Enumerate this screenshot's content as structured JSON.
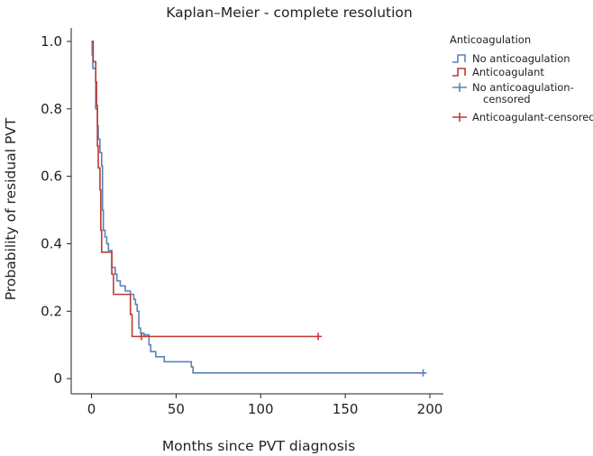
{
  "chart_data": {
    "type": "line",
    "title": "Kaplan–Meier - complete resolution",
    "xlabel": "Months since PVT diagnosis",
    "ylabel": "Probability of residual PVT",
    "xlim": [
      -12,
      208
    ],
    "ylim": [
      -0.045,
      1.04
    ],
    "xticks": [
      0,
      50,
      100,
      150,
      200
    ],
    "xtick_labels": [
      "0",
      "50",
      "100",
      "150",
      "200"
    ],
    "yticks": [
      0,
      0.2,
      0.4,
      0.6,
      0.8,
      1.0
    ],
    "ytick_labels": [
      "0",
      "0.2",
      "0.4",
      "0.6",
      "0.8",
      "1.0"
    ],
    "grid": false,
    "legend": {
      "position": "top-right",
      "title": "Anticoagulation",
      "entries": [
        {
          "label": "No anticoagulation",
          "kind": "step",
          "color": "#5b82b8"
        },
        {
          "label": "Anticoagulant",
          "kind": "step",
          "color": "#bf3b33"
        },
        {
          "label": "No anticoagulation-",
          "label2": "censored",
          "kind": "censor",
          "color": "#5b82b8"
        },
        {
          "label": "Anticoagulant-censored",
          "kind": "censor",
          "color": "#bf3b33"
        }
      ]
    },
    "series": [
      {
        "name": "No anticoagulation",
        "color": "#5b82b8",
        "steps": [
          [
            0,
            1.0
          ],
          [
            0.4,
            0.96
          ],
          [
            0.8,
            0.92
          ],
          [
            2.5,
            0.8
          ],
          [
            3.5,
            0.75
          ],
          [
            4,
            0.71
          ],
          [
            5,
            0.67
          ],
          [
            6,
            0.63
          ],
          [
            6.5,
            0.5
          ],
          [
            7,
            0.44
          ],
          [
            8,
            0.42
          ],
          [
            9,
            0.4
          ],
          [
            10,
            0.38
          ],
          [
            12,
            0.33
          ],
          [
            14,
            0.31
          ],
          [
            15,
            0.29
          ],
          [
            17,
            0.275
          ],
          [
            20,
            0.26
          ],
          [
            23,
            0.25
          ],
          [
            25,
            0.235
          ],
          [
            26,
            0.22
          ],
          [
            27,
            0.2
          ],
          [
            28,
            0.15
          ],
          [
            29,
            0.135
          ],
          [
            31,
            0.13
          ],
          [
            34,
            0.1
          ],
          [
            35,
            0.08
          ],
          [
            38,
            0.065
          ],
          [
            43,
            0.05
          ],
          [
            59,
            0.035
          ],
          [
            60,
            0.017
          ],
          [
            196,
            0.017
          ]
        ],
        "censored": [
          [
            196,
            0.017
          ]
        ]
      },
      {
        "name": "Anticoagulant",
        "color": "#bf3b33",
        "steps": [
          [
            0,
            1.0
          ],
          [
            1,
            0.94
          ],
          [
            2.5,
            0.88
          ],
          [
            3,
            0.81
          ],
          [
            3.5,
            0.69
          ],
          [
            4,
            0.625
          ],
          [
            5,
            0.56
          ],
          [
            5.5,
            0.44
          ],
          [
            6,
            0.375
          ],
          [
            12,
            0.31
          ],
          [
            13,
            0.25
          ],
          [
            23,
            0.19
          ],
          [
            24,
            0.125
          ],
          [
            134,
            0.125
          ]
        ],
        "censored": [
          [
            29.5,
            0.125
          ],
          [
            134,
            0.125
          ]
        ]
      }
    ]
  }
}
